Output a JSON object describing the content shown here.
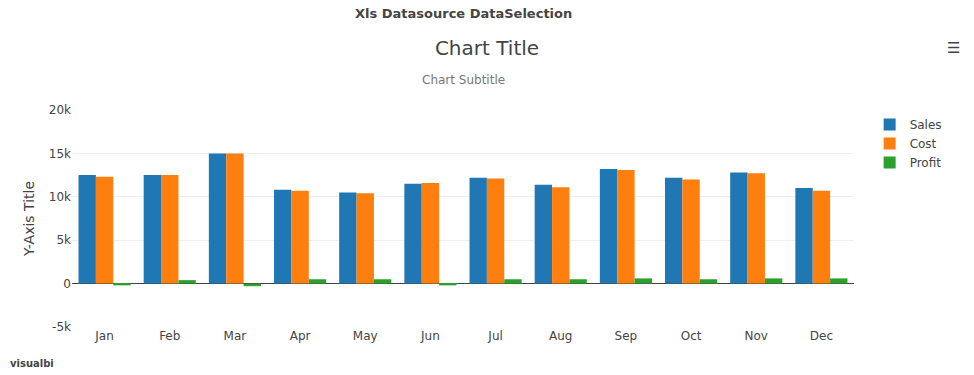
{
  "chart_data": {
    "type": "bar",
    "title": "Chart Title",
    "subtitle": "Chart Subtitle",
    "ylabel": "Y-Axis Title",
    "annotations": [
      "Xls Datasource DataSelection",
      "☰",
      "visualbi"
    ],
    "categories": [
      "Jan",
      "Feb",
      "Mar",
      "Apr",
      "May",
      "Jun",
      "Jul",
      "Aug",
      "Sep",
      "Oct",
      "Nov",
      "Dec"
    ],
    "series": [
      {
        "name": "Sales",
        "values": [
          12500,
          12500,
          15000,
          10800,
          10500,
          11500,
          12200,
          11400,
          13200,
          12200,
          12800,
          11000
        ]
      },
      {
        "name": "Cost",
        "values": [
          12300,
          12500,
          15000,
          10700,
          10400,
          11600,
          12100,
          11100,
          13100,
          12000,
          12700,
          10700
        ]
      },
      {
        "name": "Profit",
        "values": [
          -200,
          400,
          -300,
          500,
          500,
          -200,
          500,
          500,
          600,
          500,
          600,
          600
        ]
      }
    ],
    "ylim": [
      -5000,
      20000
    ],
    "yticks": [
      {
        "value": -5000,
        "label": "-5k"
      },
      0,
      {
        "value": 5000,
        "label": "5k"
      },
      {
        "value": 10000,
        "label": "10k"
      },
      {
        "value": 15000,
        "label": "15k"
      },
      {
        "value": 20000,
        "label": "20k"
      }
    ],
    "grid": true,
    "legend": "right"
  }
}
